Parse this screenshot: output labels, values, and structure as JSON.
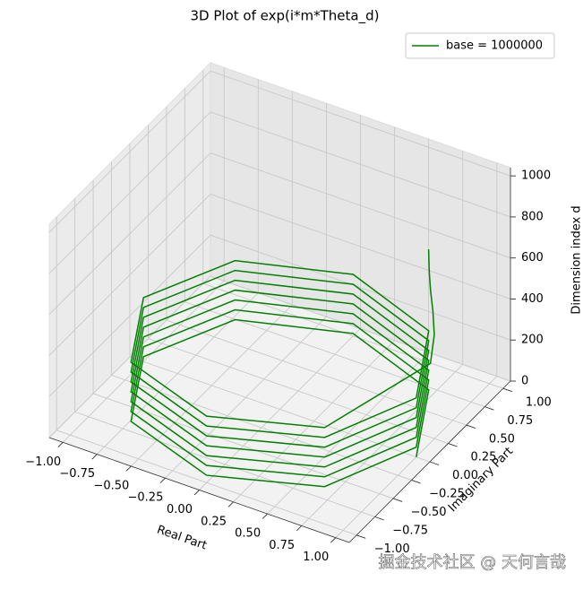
{
  "chart_data": {
    "type": "line3d",
    "title": "3D Plot of exp(i*m*Theta_d)",
    "xlabel": "Real Part",
    "ylabel": "Imaginary Part",
    "zlabel": "Dimension index d",
    "watermark": "掘金技术社区 @ 天何言哉",
    "legend": "upper right",
    "xlim": [
      -1.1,
      1.1
    ],
    "ylim": [
      -1.1,
      1.1
    ],
    "zlim": [
      0,
      1040
    ],
    "xticks": [
      {
        "value": -1,
        "label": "−1.00"
      },
      {
        "value": -0.75,
        "label": "−0.75"
      },
      {
        "value": -0.5,
        "label": "−0.50"
      },
      {
        "value": -0.25,
        "label": "−0.25"
      },
      {
        "value": 0,
        "label": "0.00"
      },
      {
        "value": 0.25,
        "label": "0.25"
      },
      {
        "value": 0.5,
        "label": "0.50"
      },
      {
        "value": 0.75,
        "label": "0.75"
      },
      {
        "value": 1,
        "label": "1.00"
      }
    ],
    "yticks": [
      {
        "value": -1,
        "label": "−1.00"
      },
      {
        "value": -0.75,
        "label": "−0.75"
      },
      {
        "value": -0.5,
        "label": "−0.50"
      },
      {
        "value": -0.25,
        "label": "−0.25"
      },
      {
        "value": 0,
        "label": "0.00"
      },
      {
        "value": 0.25,
        "label": "0.25"
      },
      {
        "value": 0.5,
        "label": "0.50"
      },
      {
        "value": 0.75,
        "label": "0.75"
      },
      {
        "value": 1,
        "label": "1.00"
      }
    ],
    "zticks": [
      0,
      200,
      400,
      600,
      800,
      1000
    ],
    "series": [
      {
        "name": "base = 1000000",
        "color": "#008000",
        "x": [
          1,
          0.71,
          0,
          -0.71,
          -1,
          -0.71,
          0,
          0.71,
          1,
          0.71,
          0,
          -0.71,
          -1,
          -0.71,
          0,
          0.71,
          1,
          0.71,
          0,
          -0.71,
          -1,
          -0.71,
          0,
          0.71,
          1,
          0.71,
          0,
          -0.71,
          -1,
          -0.71,
          0,
          0.71,
          1,
          0.71,
          0,
          -0.71,
          -1,
          -0.71,
          0,
          0.71,
          1,
          0.71,
          0,
          -0.71,
          -1,
          -0.71,
          0,
          0.71,
          1,
          0.71,
          0,
          -0.71,
          -1,
          -0.71,
          0,
          0.71,
          0.97,
          0.88,
          0.8,
          0.75,
          0.73,
          0.72
        ],
        "y": [
          0,
          0.71,
          1,
          0.71,
          0,
          -0.71,
          -1,
          -0.71,
          0,
          0.71,
          1,
          0.71,
          0,
          -0.71,
          -1,
          -0.71,
          0,
          0.71,
          1,
          0.71,
          0,
          -0.71,
          -1,
          -0.71,
          0,
          0.71,
          1,
          0.71,
          0,
          -0.71,
          -1,
          -0.71,
          0,
          0.71,
          1,
          0.71,
          0,
          -0.71,
          -1,
          -0.71,
          0,
          0.71,
          1,
          0.71,
          0,
          -0.71,
          -1,
          -0.71,
          0,
          0.71,
          1,
          0.71,
          0,
          -0.71,
          -1,
          -0.71,
          0.25,
          0.47,
          0.6,
          0.66,
          0.68,
          0.69
        ],
        "z": [
          0,
          6,
          12,
          18,
          24,
          30,
          36,
          42,
          48,
          54,
          60,
          66,
          72,
          78,
          84,
          90,
          96,
          102,
          108,
          114,
          120,
          126,
          132,
          138,
          144,
          150,
          156,
          162,
          168,
          174,
          180,
          186,
          192,
          198,
          204,
          210,
          216,
          222,
          228,
          234,
          240,
          246,
          252,
          258,
          264,
          270,
          276,
          282,
          288,
          294,
          300,
          306,
          312,
          318,
          324,
          330,
          360,
          400,
          450,
          520,
          600,
          700
        ]
      }
    ]
  }
}
